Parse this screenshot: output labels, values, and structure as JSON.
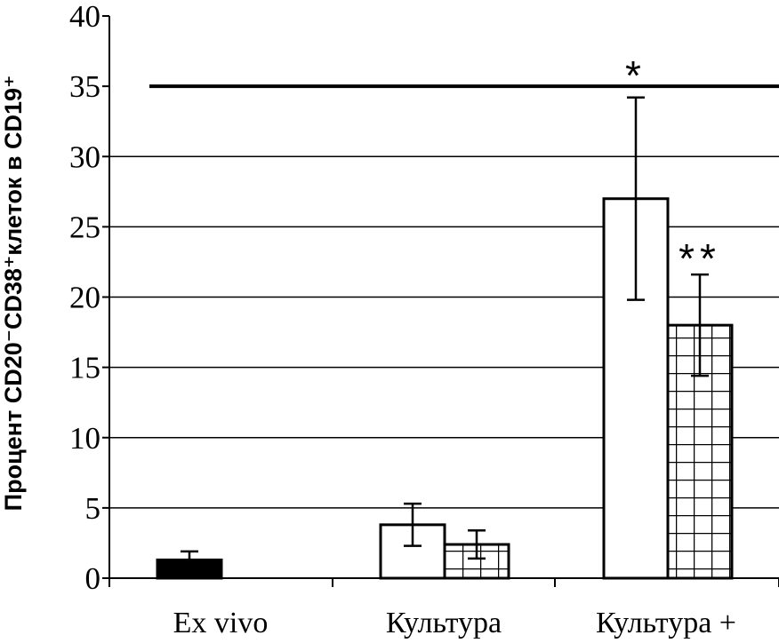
{
  "chart_data": {
    "type": "bar",
    "title": "",
    "xlabel": "",
    "ylabel": "Процент CD20⁻CD38⁺клеток в CD19⁺",
    "ylim": [
      0,
      40
    ],
    "yticks": [
      0,
      5,
      10,
      15,
      20,
      25,
      30,
      35,
      40
    ],
    "ytick_labels": [
      "0",
      "5",
      "10",
      "15",
      "20",
      "25",
      "30",
      "35",
      "40"
    ],
    "grid": true,
    "categories": [
      "Ex vivo",
      "Культура",
      "Культура +"
    ],
    "series": [
      {
        "pattern": "solid-black",
        "values": [
          1.3,
          3.8,
          27.0
        ],
        "errors": [
          0.6,
          1.5,
          7.2
        ]
      },
      {
        "pattern": "grid-hatch",
        "values": [
          null,
          2.4,
          18.0
        ],
        "errors": [
          null,
          1.0,
          3.6
        ]
      }
    ],
    "reference_line": 35,
    "annotations": [
      {
        "text": "*",
        "category": 2,
        "series": 0,
        "y": 35
      },
      {
        "text": "**",
        "category": 2,
        "series": 1,
        "y": 22
      }
    ]
  }
}
